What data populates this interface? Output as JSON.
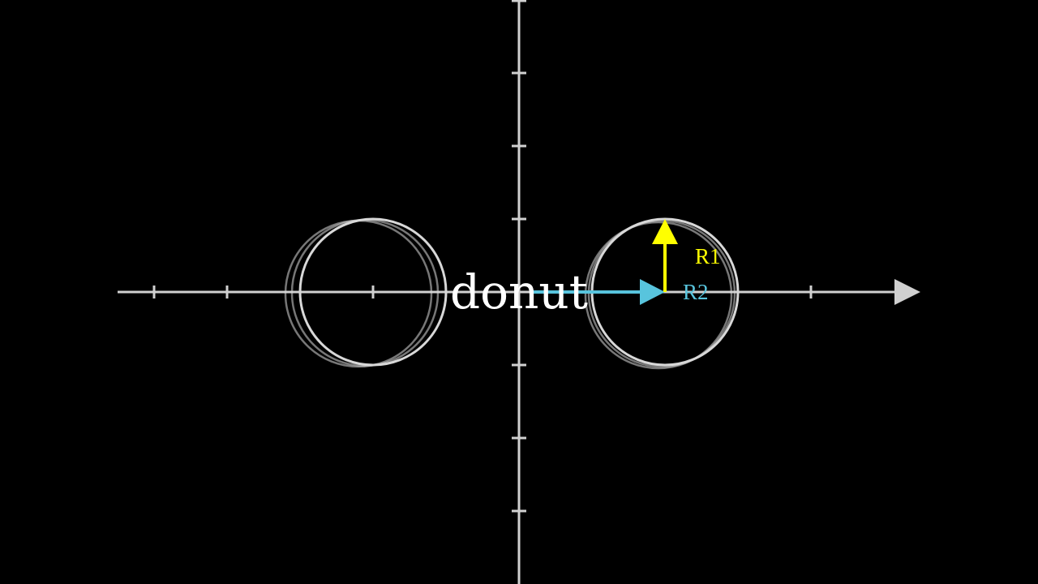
{
  "title": "donut",
  "labels": {
    "r1": "R1",
    "r2": "R2"
  },
  "colors": {
    "background": "#000000",
    "axis": "#d0d0d0",
    "circle": "#d8d8d8",
    "r1_vector": "#ffff00",
    "r2_vector": "#58c4dd",
    "text": "#ffffff"
  },
  "axes": {
    "x_ticks": [
      -5,
      -4,
      -2,
      4
    ],
    "y_ticks": [
      -3,
      -2,
      -1,
      1,
      2,
      3
    ]
  },
  "circles": [
    {
      "name": "right",
      "center": 2,
      "radius": 1
    },
    {
      "name": "left",
      "center": -2,
      "radius": 1
    }
  ],
  "vectors": {
    "r1": {
      "from": [
        2,
        0
      ],
      "to": [
        2,
        1
      ]
    },
    "r2": {
      "from": [
        0,
        0
      ],
      "to": [
        2,
        0
      ]
    }
  }
}
